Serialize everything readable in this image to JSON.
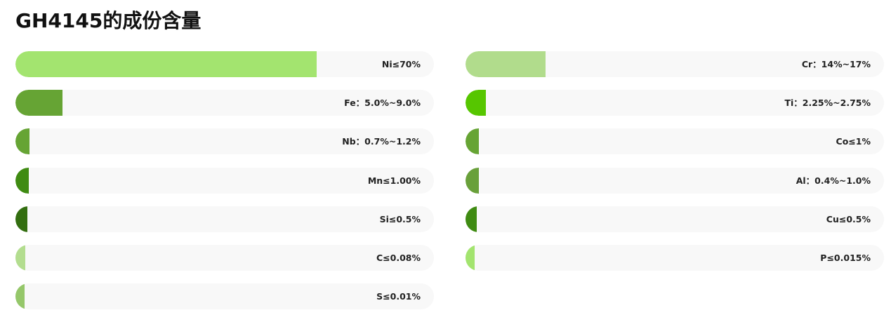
{
  "page": {
    "title": "GH4145的成份含量"
  },
  "chart_data": {
    "type": "bar",
    "orientation": "horizontal",
    "title": "GH4145的成份含量",
    "xlim": [
      0,
      100
    ],
    "grid": false,
    "legend": "none",
    "columns": [
      {
        "bars": [
          {
            "label": "Ni≤70%",
            "value": 72,
            "color": "#a3e46f"
          },
          {
            "label": "Fe：5.0%~9.0%",
            "value": 11.2,
            "color": "#66a434"
          },
          {
            "label": "Nb：0.7%~1.2%",
            "value": 3.4,
            "color": "#66a434"
          },
          {
            "label": "Mn≤1.00%",
            "value": 3.2,
            "color": "#3f8b12"
          },
          {
            "label": "Si≤0.5%",
            "value": 2.9,
            "color": "#336e10"
          },
          {
            "label": "C≤0.08%",
            "value": 2.3,
            "color": "#b3dd8f"
          },
          {
            "label": "S≤0.01%",
            "value": 2.1,
            "color": "#95c76a"
          }
        ]
      },
      {
        "bars": [
          {
            "label": "Cr：14%~17%",
            "value": 19.1,
            "color": "#b1dc8c"
          },
          {
            "label": "Ti：2.25%~2.75%",
            "value": 4.9,
            "color": "#56c600"
          },
          {
            "label": "Co≤1%",
            "value": 3.2,
            "color": "#66a434"
          },
          {
            "label": "Al：0.4%~1.0%",
            "value": 3.2,
            "color": "#69a03a"
          },
          {
            "label": "Cu≤0.5%",
            "value": 2.7,
            "color": "#3f8b12"
          },
          {
            "label": "P≤0.015%",
            "value": 2.1,
            "color": "#a3e46f"
          }
        ]
      }
    ]
  }
}
